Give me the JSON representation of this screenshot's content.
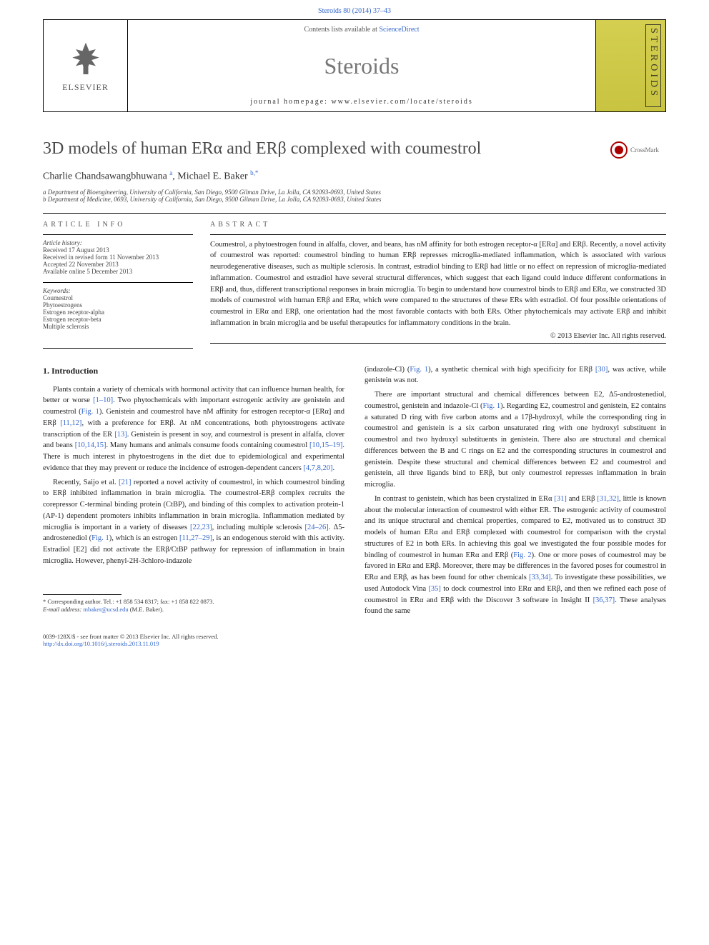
{
  "top_link": "Steroids 80 (2014) 37–43",
  "header": {
    "contents_prefix": "Contents lists available at ",
    "contents_link": "ScienceDirect",
    "journal": "Steroids",
    "homepage_prefix": "journal homepage: ",
    "homepage": "www.elsevier.com/locate/steroids",
    "elsevier": "ELSEVIER",
    "cover_text": "STEROIDS"
  },
  "crossmark": "CrossMark",
  "title": "3D models of human ERα and ERβ complexed with coumestrol",
  "authors_html": "Charlie Chandsawangbhuwana <sup>a</sup>, Michael E. Baker <sup>b,*</sup>",
  "affiliations": {
    "a": "a Department of Bioengineering, University of California, San Diego, 9500 Gilman Drive, La Jolla, CA 92093-0693, United States",
    "b": "b Department of Medicine, 0693, University of California, San Diego, 9500 Gilman Drive, La Jolla, CA 92093-0693, United States"
  },
  "info_head": "ARTICLE INFO",
  "abs_head": "ABSTRACT",
  "history": {
    "label": "Article history:",
    "received": "Received 17 August 2013",
    "revised": "Received in revised form 11 November 2013",
    "accepted": "Accepted 22 November 2013",
    "online": "Available online 5 December 2013"
  },
  "keywords": {
    "label": "Keywords:",
    "items": [
      "Coumestrol",
      "Phytoestrogens",
      "Estrogen receptor-alpha",
      "Estrogen receptor-beta",
      "Multiple sclerosis"
    ]
  },
  "abstract": "Coumestrol, a phytoestrogen found in alfalfa, clover, and beans, has nM affinity for both estrogen receptor-α [ERα] and ERβ. Recently, a novel activity of coumestrol was reported: coumestrol binding to human ERβ represses microglia-mediated inflammation, which is associated with various neurodegenerative diseases, such as multiple sclerosis. In contrast, estradiol binding to ERβ had little or no effect on repression of microglia-mediated inflammation. Coumestrol and estradiol have several structural differences, which suggest that each ligand could induce different conformations in ERβ and, thus, different transcriptional responses in brain microglia. To begin to understand how coumestrol binds to ERβ and ERα, we constructed 3D models of coumestrol with human ERβ and ERα, which were compared to the structures of these ERs with estradiol. Of four possible orientations of coumestrol in ERα and ERβ, one orientation had the most favorable contacts with both ERs. Other phytochemicals may activate ERβ and inhibit inflammation in brain microglia and be useful therapeutics for inflammatory conditions in the brain.",
  "copyright": "© 2013 Elsevier Inc. All rights reserved.",
  "introduction_head": "1. Introduction",
  "left_paragraphs": [
    "Plants contain a variety of chemicals with hormonal activity that can influence human health, for better or worse <span class=\"ref\">[1–10]</span>. Two phytochemicals with important estrogenic activity are genistein and coumestrol (<span class=\"ref\">Fig. 1</span>). Genistein and coumestrol have nM affinity for estrogen receptor-α [ERα] and ERβ <span class=\"ref\">[11,12]</span>, with a preference for ERβ. At nM concentrations, both phytoestrogens activate transcription of the ER <span class=\"ref\">[13]</span>. Genistein is present in soy, and coumestrol is present in alfalfa, clover and beans <span class=\"ref\">[10,14,15]</span>. Many humans and animals consume foods containing coumestrol <span class=\"ref\">[10,15–19]</span>. There is much interest in phytoestrogens in the diet due to epidemiological and experimental evidence that they may prevent or reduce the incidence of estrogen-dependent cancers <span class=\"ref\">[4,7,8,20]</span>.",
    "Recently, Saijo et al. <span class=\"ref\">[21]</span> reported a novel activity of coumestrol, in which coumestrol binding to ERβ inhibited inflammation in brain microglia. The coumestrol-ERβ complex recruits the corepressor C-terminal binding protein (CtBP), and binding of this complex to activation protein-1 (AP-1) dependent promoters inhibits inflammation in brain microglia. Inflammation mediated by microglia is important in a variety of diseases <span class=\"ref\">[22,23]</span>, including multiple sclerosis <span class=\"ref\">[24–26]</span>. Δ5-androstenediol (<span class=\"ref\">Fig. 1</span>), which is an estrogen <span class=\"ref\">[11,27–29]</span>, is an endogenous steroid with this activity. Estradiol [E2] did not activate the ERβ/CtBP pathway for repression of inflammation in brain microglia. However, phenyl-2H-3chloro-indazole"
  ],
  "right_paragraphs": [
    "(indazole-Cl) (<span class=\"ref\">Fig. 1</span>), a synthetic chemical with high specificity for ERβ <span class=\"ref\">[30]</span>, was active, while genistein was not.",
    "There are important structural and chemical differences between E2, Δ5-androstenediol, coumestrol, genistein and indazole-Cl (<span class=\"ref\">Fig. 1</span>). Regarding E2, coumestrol and genistein, E2 contains a saturated D ring with five carbon atoms and a 17β-hydroxyl, while the corresponding ring in coumestrol and genistein is a six carbon unsaturated ring with one hydroxyl substituent in coumestrol and two hydroxyl substituents in genistein. There also are structural and chemical differences between the B and C rings on E2 and the corresponding structures in coumestrol and genistein. Despite these structural and chemical differences between E2 and coumestrol and genistein, all three ligands bind to ERβ, but only coumestrol represses inflammation in brain microglia.",
    "In contrast to genistein, which has been crystalized in ERα <span class=\"ref\">[31]</span> and ERβ <span class=\"ref\">[31,32]</span>, little is known about the molecular interaction of coumestrol with either ER. The estrogenic activity of coumestrol and its unique structural and chemical properties, compared to E2, motivated us to construct 3D models of human ERα and ERβ complexed with coumestrol for comparison with the crystal structures of E2 in both ERs. In achieving this goal we investigated the four possible modes for binding of coumestrol in human ERα and ERβ (<span class=\"ref\">Fig. 2</span>). One or more poses of coumestrol may be favored in ERα and ERβ. Moreover, there may be differences in the favored poses for coumestrol in ERα and ERβ, as has been found for other chemicals <span class=\"ref\">[33,34]</span>. To investigate these possibilities, we used Autodock Vina <span class=\"ref\">[35]</span> to dock coumestrol into ERα and ERβ, and then we refined each pose of coumestrol in ERα and ERβ with the Discover 3 software in Insight II <span class=\"ref\">[36,37]</span>. These analyses found the same"
  ],
  "footnote": {
    "corr": "* Corresponding author. Tel.: +1 858 534 8317; fax: +1 858 822 0873.",
    "email_label": "E-mail address: ",
    "email": "mbaker@ucsd.edu",
    "email_suffix": " (M.E. Baker)."
  },
  "footer": {
    "line1": "0039-128X/$ - see front matter © 2013 Elsevier Inc. All rights reserved.",
    "line2": "http://dx.doi.org/10.1016/j.steroids.2013.11.019"
  },
  "colors": {
    "link": "#3366cc",
    "cover_bg": "#d4cf50",
    "text": "#222222"
  }
}
